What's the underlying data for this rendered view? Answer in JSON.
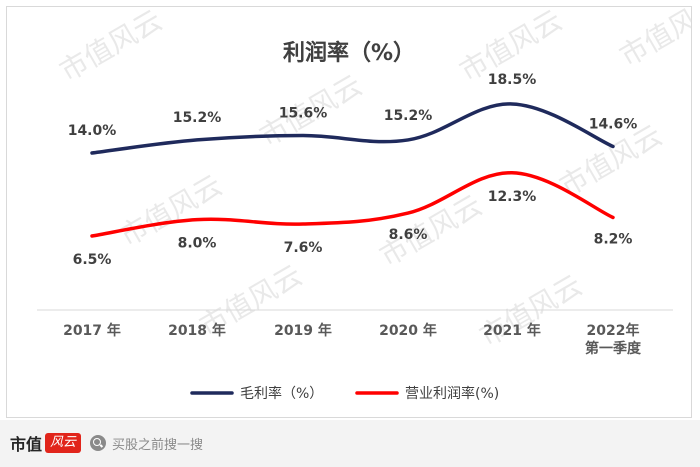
{
  "chart_data": {
    "type": "line",
    "title": "利润率（%）",
    "categories": [
      "2017 年",
      "2018 年",
      "2019 年",
      "2020 年",
      "2021 年",
      "2022年\n第一季度"
    ],
    "series": [
      {
        "name": "毛利率（%）",
        "color": "#1f2a5c",
        "values": [
          14.0,
          15.2,
          15.6,
          15.2,
          18.5,
          14.6
        ],
        "labels": [
          "14.0%",
          "15.2%",
          "15.6%",
          "15.2%",
          "18.5%",
          "14.6%"
        ]
      },
      {
        "name": "营业利润率(%)",
        "color": "#ff0000",
        "values": [
          6.5,
          8.0,
          7.6,
          8.6,
          12.3,
          8.2
        ],
        "labels": [
          "6.5%",
          "8.0%",
          "7.6%",
          "8.6%",
          "12.3%",
          "8.2%"
        ]
      }
    ],
    "legend": "bottom",
    "grid": false
  },
  "watermark": "市值风云",
  "footer": {
    "brand": "市值",
    "brand_logo": "风云",
    "search_placeholder": "买股之前搜一搜",
    "search_icon": "search-icon"
  }
}
